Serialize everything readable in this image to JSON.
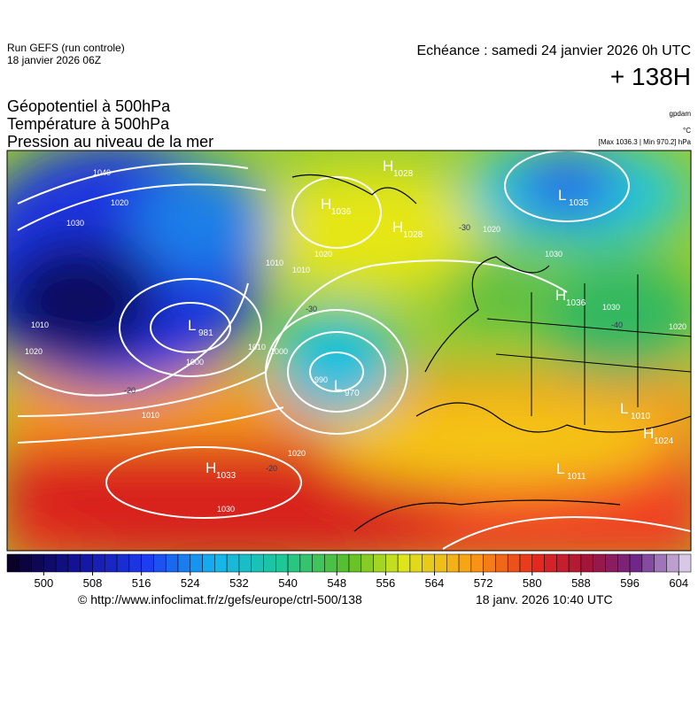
{
  "header": {
    "run": "Run GEFS (run controle)",
    "run_date": "18 janvier 2026 06Z",
    "valid": "Echéance : samedi 24 janvier 2026 0h UTC",
    "lead": "+ 138H",
    "field1": "Géopotentiel à 500hPa",
    "field2": "Température à 500hPa",
    "field3": "Pression au niveau de la mer",
    "unit1": "gpdam",
    "unit2": "°C",
    "extremes": "[Max 1036.3 | Min 970.2] hPa"
  },
  "map": {
    "centers": [
      {
        "letter": "H",
        "value": 1028
      },
      {
        "letter": "H",
        "value": 1036
      },
      {
        "letter": "H",
        "value": 1028
      },
      {
        "letter": "L",
        "value": 1035
      },
      {
        "letter": "H",
        "value": 1036
      },
      {
        "letter": "L",
        "value": 981
      },
      {
        "letter": "L",
        "value": 970
      },
      {
        "letter": "H",
        "value": 1033
      },
      {
        "letter": "L",
        "value": 1010
      },
      {
        "letter": "H",
        "value": 1024
      },
      {
        "letter": "L",
        "value": 1011
      }
    ],
    "isobar_labels": [
      1040,
      1030,
      1020,
      1010,
      1020,
      1010,
      1010,
      1000,
      990,
      1020,
      1020,
      1030,
      1010,
      1000,
      1030,
      1020,
      1020,
      1010,
      1030
    ],
    "isotherm_labels": [
      -30,
      -30,
      -20,
      -40,
      -20
    ]
  },
  "colorbar": {
    "lim": [
      494,
      606
    ],
    "ticks": [
      500,
      508,
      516,
      524,
      532,
      540,
      548,
      556,
      564,
      572,
      580,
      588,
      596,
      604
    ]
  },
  "footer": {
    "url": "© http://www.infoclimat.fr/z/gefs/europe/ctrl-500/138",
    "stamp": "18 janv. 2026 10:40 UTC"
  }
}
